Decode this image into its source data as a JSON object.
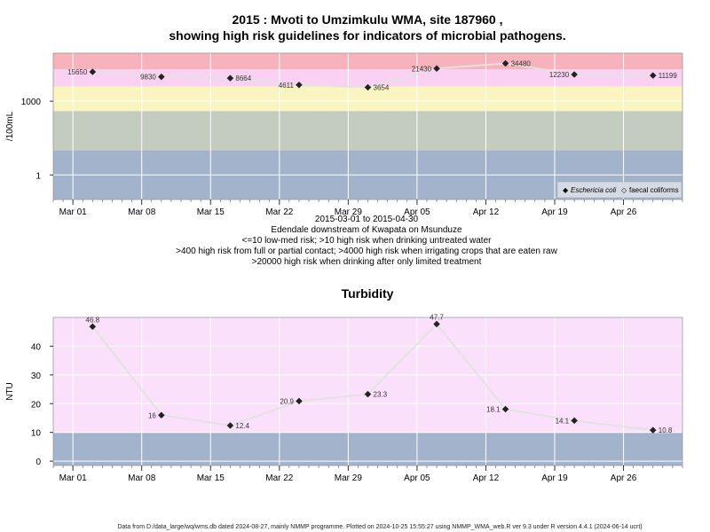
{
  "page": {
    "title_line1": "2015 : Mvoti to Umzimkulu WMA, site 187960 ,",
    "title_line2": "showing high risk guidelines for indicators of microbial pathogens.",
    "caption": [
      "2015-03-01 to 2015-04-30",
      "Edendale downstream of Kwapata on Msunduze",
      "<=10 low-med risk; >10 high risk when drinking untreated water",
      ">400 high risk from full or partial contact; >4000 high risk when irrigating crops that are eaten raw",
      ">20000 high risk when drinking after only limited treatment"
    ],
    "footer": "Data from D:/data_large/wq/wms.db dated 2024-08-27, mainly NMMP programme. Plotted on 2024-10-25 15:55:27 using NMMP_WMA_web.R ver 9.3 under R version 4.4.1 (2024-06-14 ucrt)"
  },
  "chart_data": [
    {
      "type": "scatter",
      "title": "",
      "ylabel": "/100mL",
      "yscale": "log10",
      "yticks": [
        1,
        1000
      ],
      "ylim": [
        0.1,
        90000
      ],
      "xticks": [
        "Mar 01",
        "Mar 08",
        "Mar 15",
        "Mar 22",
        "Mar 29",
        "Apr 05",
        "Apr 12",
        "Apr 19",
        "Apr 26"
      ],
      "xtick_dates": [
        "2015-03-01",
        "2015-03-08",
        "2015-03-15",
        "2015-03-22",
        "2015-03-29",
        "2015-04-05",
        "2015-04-12",
        "2015-04-19",
        "2015-04-26"
      ],
      "xlim": [
        "2015-02-27",
        "2015-05-02"
      ],
      "bands": [
        {
          "from": 0.1,
          "to": 10,
          "color": "#a3b3cb"
        },
        {
          "from": 10,
          "to": 400,
          "color": "#c4cbbf"
        },
        {
          "from": 400,
          "to": 4000,
          "color": "#faf4c0"
        },
        {
          "from": 4000,
          "to": 20000,
          "color": "#fbd1f3"
        },
        {
          "from": 20000,
          "to": 90000,
          "color": "#f8b2bc"
        }
      ],
      "series": [
        {
          "name": "Eschericia coli",
          "marker": "filled-diamond",
          "color": "#555555",
          "x": [
            "2015-03-03",
            "2015-03-10",
            "2015-03-17",
            "2015-03-24",
            "2015-03-31",
            "2015-04-07",
            "2015-04-14",
            "2015-04-21",
            "2015-04-29"
          ],
          "y": [
            15650,
            9830,
            8664,
            4611,
            3654,
            21430,
            34480,
            12230,
            11199
          ],
          "labels": [
            "15650",
            "9830",
            "8664",
            "4611",
            "3654",
            "21430",
            "34480",
            "12230",
            "11199"
          ],
          "label_side": [
            "left",
            "left",
            "right",
            "left",
            "right",
            "left",
            "right",
            "left",
            "right"
          ]
        }
      ],
      "legend": {
        "position": "bottom-right",
        "items": [
          {
            "label": "Eschericia coli",
            "symbol": "◆",
            "italic": true
          },
          {
            "label": "faecal coliforms",
            "symbol": "◇",
            "italic": false
          }
        ]
      }
    },
    {
      "type": "scatter",
      "title": "Turbidity",
      "ylabel": "NTU",
      "yticks": [
        0,
        10,
        20,
        30,
        40
      ],
      "ylim": [
        -1.5,
        50
      ],
      "xticks": [
        "Mar 01",
        "Mar 08",
        "Mar 15",
        "Mar 22",
        "Mar 29",
        "Apr 05",
        "Apr 12",
        "Apr 19",
        "Apr 26"
      ],
      "xtick_dates": [
        "2015-03-01",
        "2015-03-08",
        "2015-03-15",
        "2015-03-22",
        "2015-03-29",
        "2015-04-05",
        "2015-04-12",
        "2015-04-19",
        "2015-04-26"
      ],
      "xlim": [
        "2015-02-27",
        "2015-05-02"
      ],
      "bands": [
        {
          "from": -1.5,
          "to": 10,
          "color": "#a3b3cb"
        },
        {
          "from": 10,
          "to": 50,
          "color": "#fbe0fb"
        }
      ],
      "series": [
        {
          "name": "",
          "marker": "filled-diamond",
          "color": "#555555",
          "x": [
            "2015-03-03",
            "2015-03-10",
            "2015-03-17",
            "2015-03-24",
            "2015-03-31",
            "2015-04-07",
            "2015-04-14",
            "2015-04-21",
            "2015-04-29"
          ],
          "y": [
            46.8,
            16,
            12.4,
            20.9,
            23.3,
            47.7,
            18.1,
            14.1,
            10.8
          ],
          "labels": [
            "46.8",
            "16",
            "12.4",
            "20.9",
            "23.3",
            "47.7",
            "18.1",
            "14.1",
            "10.8"
          ],
          "label_side": [
            "above",
            "left",
            "right",
            "left",
            "right",
            "above",
            "left",
            "left",
            "right"
          ]
        }
      ]
    }
  ]
}
